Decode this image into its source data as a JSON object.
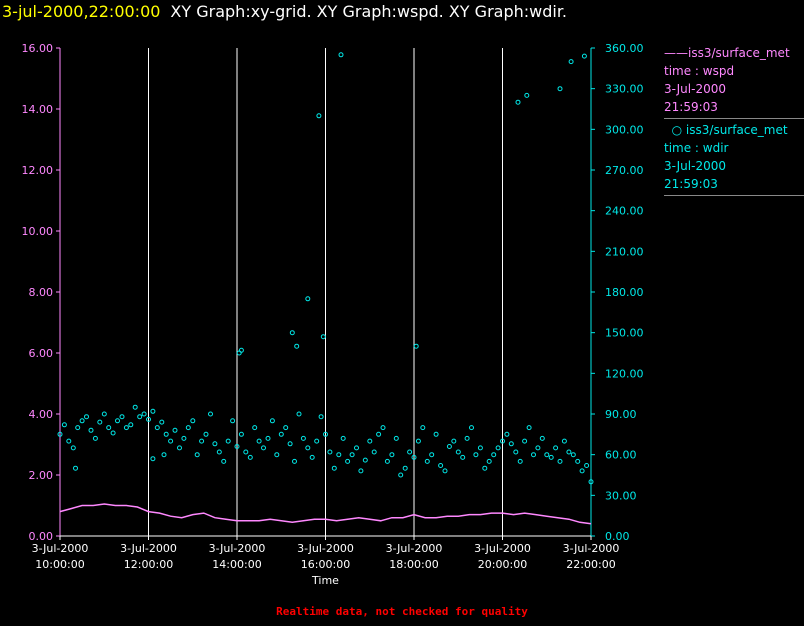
{
  "header": {
    "timestamp": "3-jul-2000,22:00:00",
    "graph_titles": "XY Graph:xy-grid.  XY Graph:wspd.  XY Graph:wdir."
  },
  "legend": [
    {
      "line1": "iss3/surface_met",
      "line2": "time : wspd",
      "line3": "3-Jul-2000",
      "line4": "21:59:03",
      "marker": "line",
      "color": "#ff88ff"
    },
    {
      "line1": "iss3/surface_met",
      "line2": "time : wdir",
      "line3": "3-Jul-2000",
      "line4": "21:59:03",
      "marker": "circle",
      "color": "#00e8e8"
    }
  ],
  "footer": "Realtime data, not checked for quality",
  "chart_data": {
    "type": "scatter",
    "xlabel": "Time",
    "x_ticks": [
      {
        "date": "3-Jul-2000",
        "time": "10:00:00"
      },
      {
        "date": "3-Jul-2000",
        "time": "12:00:00"
      },
      {
        "date": "3-Jul-2000",
        "time": "14:00:00"
      },
      {
        "date": "3-Jul-2000",
        "time": "16:00:00"
      },
      {
        "date": "3-Jul-2000",
        "time": "18:00:00"
      },
      {
        "date": "3-Jul-2000",
        "time": "20:00:00"
      },
      {
        "date": "3-Jul-2000",
        "time": "22:00:00"
      }
    ],
    "x_range_hours": [
      10,
      22
    ],
    "left_axis": {
      "series": "wspd",
      "range": [
        0,
        16
      ],
      "ticks": [
        "0.00",
        "2.00",
        "4.00",
        "6.00",
        "8.00",
        "10.00",
        "12.00",
        "14.00",
        "16.00"
      ],
      "color": "#ff88ff"
    },
    "right_axis": {
      "series": "wdir",
      "range": [
        0,
        360
      ],
      "ticks": [
        "0.00",
        "30.00",
        "60.00",
        "90.00",
        "120.00",
        "150.00",
        "180.00",
        "210.00",
        "240.00",
        "270.00",
        "300.00",
        "330.00",
        "360.00"
      ],
      "color": "#00e8e8"
    },
    "grid": "vertical",
    "series": [
      {
        "name": "iss3/surface_met",
        "quantity": "wspd",
        "style": "line",
        "color": "#ff88ff",
        "x": [
          10.0,
          10.25,
          10.5,
          10.75,
          11.0,
          11.25,
          11.5,
          11.75,
          12.0,
          12.25,
          12.5,
          12.75,
          13.0,
          13.25,
          13.5,
          13.75,
          14.0,
          14.25,
          14.5,
          14.75,
          15.0,
          15.25,
          15.5,
          15.75,
          16.0,
          16.25,
          16.5,
          16.75,
          17.0,
          17.25,
          17.5,
          17.75,
          18.0,
          18.25,
          18.5,
          18.75,
          19.0,
          19.25,
          19.5,
          19.75,
          20.0,
          20.25,
          20.5,
          20.75,
          21.0,
          21.25,
          21.5,
          21.75,
          22.0
        ],
        "y": [
          0.8,
          0.9,
          1.0,
          1.0,
          1.05,
          1.0,
          1.0,
          0.95,
          0.8,
          0.75,
          0.65,
          0.6,
          0.7,
          0.75,
          0.6,
          0.55,
          0.5,
          0.5,
          0.5,
          0.55,
          0.5,
          0.45,
          0.5,
          0.55,
          0.55,
          0.5,
          0.55,
          0.6,
          0.55,
          0.5,
          0.6,
          0.6,
          0.7,
          0.6,
          0.6,
          0.65,
          0.65,
          0.7,
          0.7,
          0.75,
          0.75,
          0.7,
          0.75,
          0.7,
          0.65,
          0.6,
          0.55,
          0.45,
          0.4
        ]
      },
      {
        "name": "iss3/surface_met",
        "quantity": "wdir",
        "style": "circle",
        "color": "#00e8e8",
        "x": [
          10.0,
          10.1,
          10.2,
          10.3,
          10.4,
          10.5,
          10.6,
          10.7,
          10.8,
          10.9,
          11.0,
          11.1,
          11.2,
          11.3,
          11.4,
          11.5,
          11.6,
          11.7,
          11.8,
          11.9,
          12.0,
          12.1,
          12.2,
          12.3,
          12.4,
          12.5,
          12.6,
          12.7,
          12.8,
          12.9,
          13.0,
          13.1,
          13.2,
          13.3,
          13.4,
          13.5,
          13.6,
          13.7,
          13.8,
          13.9,
          14.0,
          14.1,
          14.2,
          14.3,
          14.4,
          14.5,
          14.6,
          14.7,
          14.8,
          14.9,
          15.0,
          15.1,
          15.2,
          15.3,
          15.4,
          15.5,
          15.6,
          15.7,
          15.8,
          15.9,
          16.0,
          16.1,
          16.2,
          16.3,
          16.4,
          16.5,
          16.6,
          16.7,
          16.8,
          16.9,
          17.0,
          17.1,
          17.2,
          17.3,
          17.4,
          17.5,
          17.6,
          17.7,
          17.8,
          17.9,
          18.0,
          18.1,
          18.2,
          18.3,
          18.4,
          18.5,
          18.6,
          18.7,
          18.8,
          18.9,
          19.0,
          19.1,
          19.2,
          19.3,
          19.4,
          19.5,
          19.6,
          19.7,
          19.8,
          19.9,
          20.0,
          20.1,
          20.2,
          20.3,
          20.4,
          20.5,
          20.6,
          20.7,
          20.8,
          20.9,
          21.0,
          21.1,
          21.2,
          21.3,
          21.4,
          21.5,
          21.6,
          21.7,
          21.8,
          21.9,
          22.0,
          14.05,
          14.1,
          15.6,
          15.85,
          15.95,
          16.35,
          20.35,
          20.55,
          21.3,
          21.55,
          21.85,
          10.35,
          12.1,
          12.35,
          15.25,
          15.35,
          18.05
        ],
        "y": [
          75,
          82,
          70,
          65,
          80,
          85,
          88,
          78,
          72,
          84,
          90,
          80,
          76,
          85,
          88,
          80,
          82,
          95,
          88,
          90,
          86,
          92,
          80,
          84,
          75,
          70,
          78,
          65,
          72,
          80,
          85,
          60,
          70,
          75,
          90,
          68,
          62,
          55,
          70,
          85,
          66,
          75,
          62,
          58,
          80,
          70,
          65,
          72,
          85,
          60,
          75,
          80,
          68,
          55,
          90,
          72,
          65,
          58,
          70,
          88,
          75,
          62,
          50,
          60,
          72,
          55,
          60,
          65,
          48,
          56,
          70,
          62,
          75,
          80,
          55,
          60,
          72,
          45,
          50,
          62,
          58,
          70,
          80,
          55,
          60,
          75,
          52,
          48,
          66,
          70,
          62,
          58,
          72,
          80,
          60,
          65,
          50,
          55,
          60,
          65,
          70,
          75,
          68,
          62,
          55,
          70,
          80,
          60,
          65,
          72,
          60,
          58,
          65,
          55,
          70,
          62,
          60,
          55,
          48,
          52,
          40,
          135,
          137,
          175,
          310,
          147,
          355,
          320,
          325,
          330,
          350,
          354,
          50,
          57,
          60,
          150,
          140,
          140
        ]
      }
    ]
  }
}
